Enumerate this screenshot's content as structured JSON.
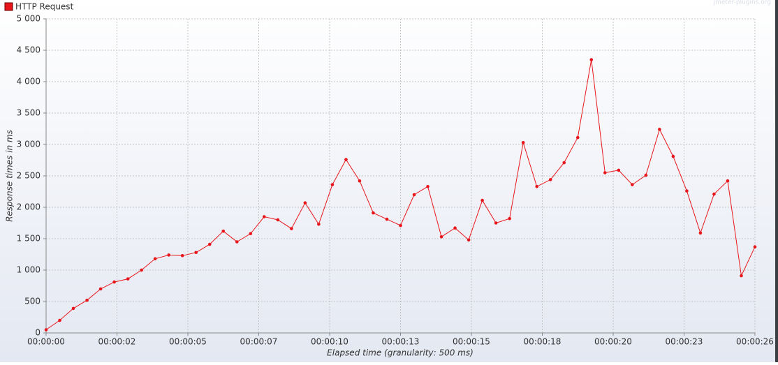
{
  "chart_data": {
    "type": "line",
    "legend_label": "HTTP Request",
    "watermark": "jmeter-plugins.org",
    "x_label": "Elapsed time (granularity: 500 ms)",
    "y_label": "Response times in ms",
    "xlim": [
      0,
      26
    ],
    "ylim": [
      0,
      5000
    ],
    "xticks": [
      {
        "value": 0,
        "label": "00:00:00"
      },
      {
        "value": 2.6,
        "label": "00:00:02"
      },
      {
        "value": 5.2,
        "label": "00:00:05"
      },
      {
        "value": 7.8,
        "label": "00:00:07"
      },
      {
        "value": 10.4,
        "label": "00:00:10"
      },
      {
        "value": 13,
        "label": "00:00:13"
      },
      {
        "value": 15.6,
        "label": "00:00:15"
      },
      {
        "value": 18.2,
        "label": "00:00:18"
      },
      {
        "value": 20.8,
        "label": "00:00:20"
      },
      {
        "value": 23.4,
        "label": "00:00:23"
      },
      {
        "value": 26,
        "label": "00:00:26"
      }
    ],
    "yticks": [
      0,
      500,
      {
        "value": 1000,
        "label": "1 000"
      },
      {
        "value": 1500,
        "label": "1 500"
      },
      {
        "value": 2000,
        "label": "2 000"
      },
      {
        "value": 2500,
        "label": "2 500"
      },
      {
        "value": 3000,
        "label": "3 000"
      },
      {
        "value": 3500,
        "label": "3 500"
      },
      {
        "value": 4000,
        "label": "4 000"
      },
      {
        "value": 4500,
        "label": "4 500"
      },
      {
        "value": 5000,
        "label": "5 000"
      }
    ],
    "grid": true,
    "series": [
      {
        "name": "HTTP Request",
        "color": "#e8161b",
        "x": [
          0,
          0.5,
          1,
          1.5,
          2,
          2.5,
          3,
          3.5,
          4,
          4.5,
          5,
          5.5,
          6,
          6.5,
          7,
          7.5,
          8,
          8.5,
          9,
          9.5,
          10,
          10.5,
          11,
          11.5,
          12,
          12.5,
          13,
          13.5,
          14,
          14.5,
          15,
          15.5,
          16,
          16.5,
          17,
          17.5,
          18,
          18.5,
          19,
          19.5,
          20,
          20.5,
          21,
          21.5,
          22,
          22.5,
          23,
          23.5,
          24,
          24.5,
          25,
          25.5,
          26
        ],
        "values": [
          50,
          200,
          390,
          520,
          700,
          810,
          860,
          1000,
          1180,
          1240,
          1230,
          1280,
          1410,
          1620,
          1450,
          1580,
          1850,
          1800,
          1660,
          2070,
          1730,
          2360,
          2760,
          2420,
          1910,
          1810,
          1710,
          2200,
          2330,
          1530,
          1670,
          1480,
          2110,
          1750,
          1820,
          3030,
          2330,
          2440,
          2710,
          3110,
          4350,
          2550,
          2590,
          2360,
          2510,
          3240,
          2810,
          2260,
          1590,
          2210,
          2420,
          910,
          1370
        ]
      }
    ]
  }
}
